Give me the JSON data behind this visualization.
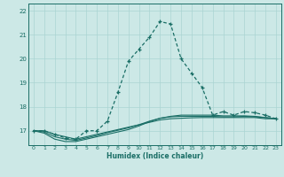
{
  "xlabel": "Humidex (Indice chaleur)",
  "background_color": "#cce8e6",
  "grid_color": "#aad4d2",
  "line_color": "#1a6e66",
  "x_values": [
    0,
    1,
    2,
    3,
    4,
    5,
    6,
    7,
    8,
    9,
    10,
    11,
    12,
    13,
    14,
    15,
    16,
    17,
    18,
    19,
    20,
    21,
    22,
    23
  ],
  "y_main": [
    17.0,
    17.0,
    16.85,
    16.7,
    16.65,
    17.0,
    17.0,
    17.4,
    18.6,
    19.9,
    20.4,
    20.9,
    21.55,
    21.45,
    20.0,
    19.4,
    18.8,
    17.65,
    17.8,
    17.65,
    17.8,
    17.75,
    17.65,
    17.5
  ],
  "y_flat1": [
    17.0,
    17.0,
    16.85,
    16.75,
    16.65,
    16.75,
    16.85,
    16.95,
    17.05,
    17.15,
    17.25,
    17.35,
    17.45,
    17.5,
    17.52,
    17.54,
    17.55,
    17.55,
    17.55,
    17.55,
    17.55,
    17.55,
    17.5,
    17.5
  ],
  "y_flat2": [
    17.0,
    16.95,
    16.75,
    16.65,
    16.6,
    16.7,
    16.8,
    16.92,
    17.02,
    17.12,
    17.25,
    17.4,
    17.52,
    17.58,
    17.6,
    17.6,
    17.6,
    17.6,
    17.58,
    17.58,
    17.6,
    17.58,
    17.55,
    17.5
  ],
  "y_flat3": [
    17.0,
    16.9,
    16.65,
    16.55,
    16.55,
    16.65,
    16.75,
    16.85,
    16.95,
    17.05,
    17.2,
    17.38,
    17.52,
    17.6,
    17.65,
    17.65,
    17.65,
    17.65,
    17.62,
    17.62,
    17.62,
    17.6,
    17.55,
    17.5
  ],
  "ylim": [
    16.4,
    22.3
  ],
  "yticks": [
    17,
    18,
    19,
    20,
    21,
    22
  ],
  "xticks": [
    0,
    1,
    2,
    3,
    4,
    5,
    6,
    7,
    8,
    9,
    10,
    11,
    12,
    13,
    14,
    15,
    16,
    17,
    18,
    19,
    20,
    21,
    22,
    23
  ]
}
